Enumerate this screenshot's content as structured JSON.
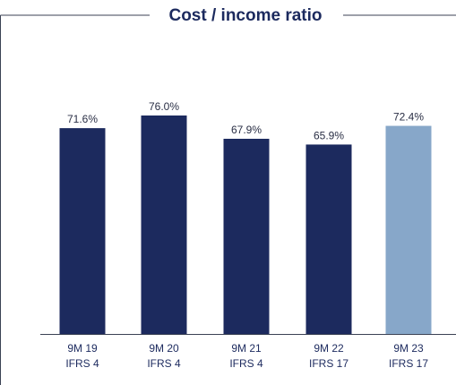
{
  "chart_data": {
    "type": "bar",
    "title": "Cost / income ratio",
    "categories": [
      [
        "9M 19",
        "IFRS 4"
      ],
      [
        "9M 20",
        "IFRS 4"
      ],
      [
        "9M 21",
        "IFRS 4"
      ],
      [
        "9M 22",
        "IFRS 17"
      ],
      [
        "9M 23",
        "IFRS 17"
      ]
    ],
    "values": [
      71.6,
      76.0,
      67.9,
      65.9,
      72.4
    ],
    "data_labels": [
      "71.6%",
      "76.0%",
      "67.9%",
      "65.9%",
      "72.4%"
    ],
    "unit": "%",
    "ylim": [
      0,
      76.0
    ],
    "grid": false,
    "legend": "none",
    "colors": {
      "bar": "#1c2a5e",
      "highlight_bar": "#87a7c9",
      "title": "#1c2a5e",
      "frame": "#3b4254"
    },
    "highlight_index": 4
  }
}
